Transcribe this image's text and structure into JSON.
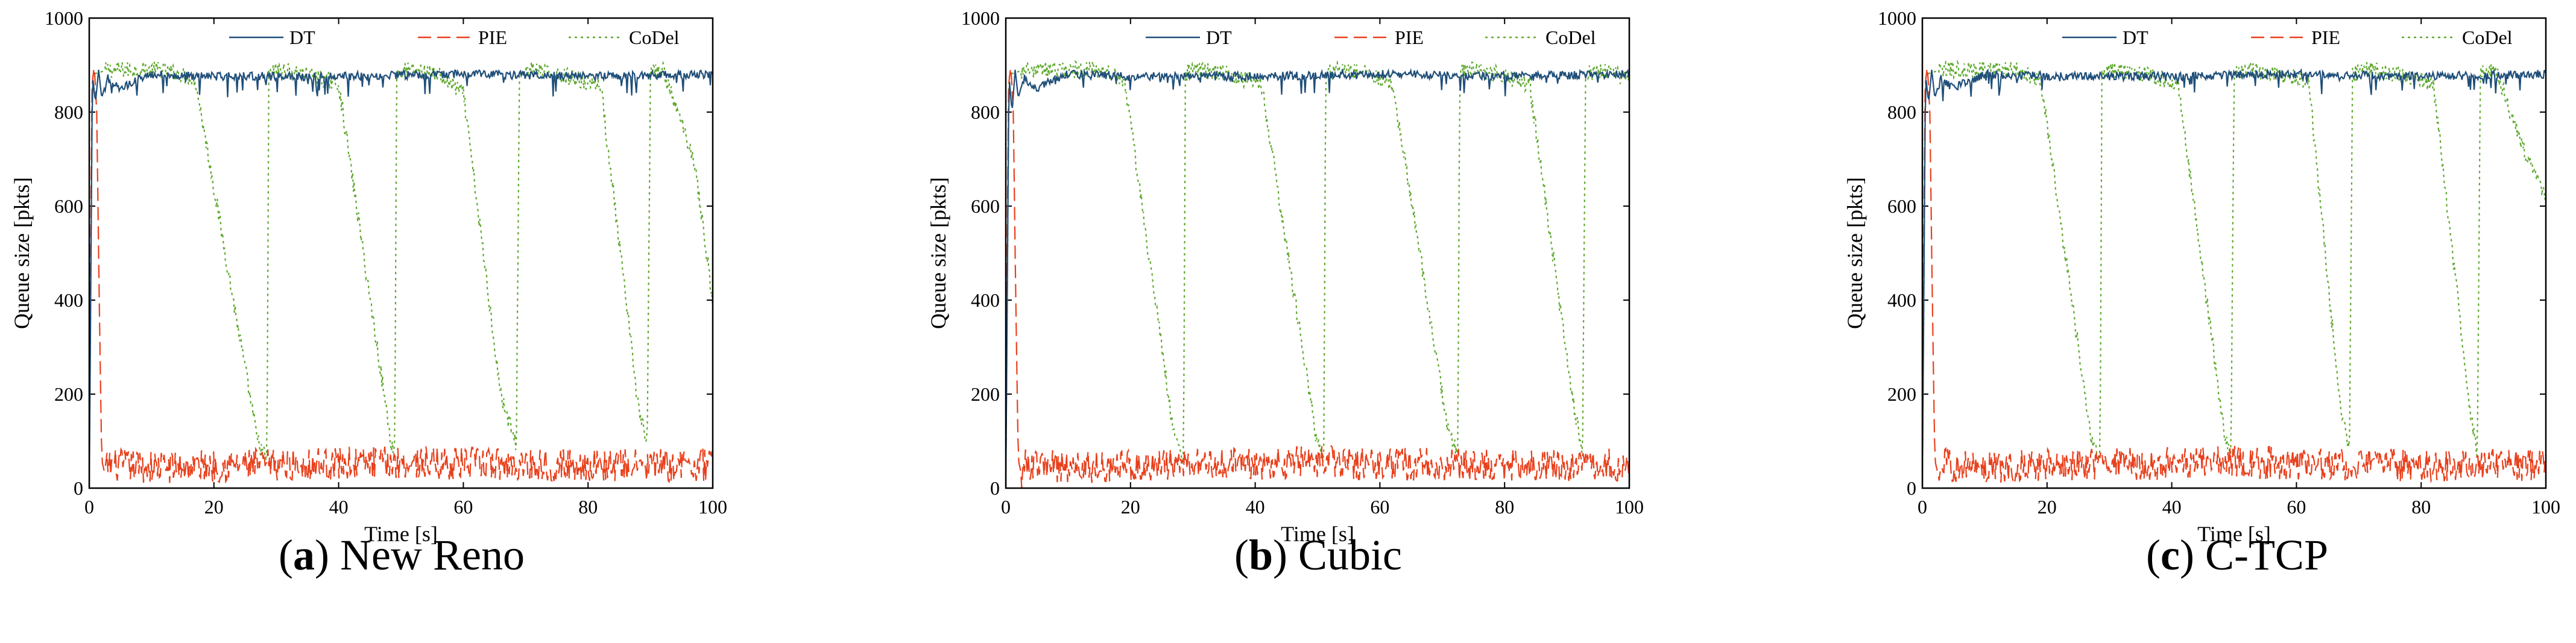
{
  "colors": {
    "DT": "#1f4e79",
    "PIE": "#e8401c",
    "CoDel": "#5fa82f"
  },
  "chart_data": [
    {
      "type": "line",
      "panel": "a",
      "caption_letter": "a",
      "caption_text": "New Reno",
      "xlabel": "Time [s]",
      "ylabel": "Queue size [pkts]",
      "xlim": [
        0,
        100
      ],
      "ylim": [
        0,
        1000
      ],
      "xticks": [
        0,
        20,
        40,
        60,
        80,
        100
      ],
      "yticks": [
        0,
        200,
        400,
        600,
        800,
        1000
      ],
      "legend": [
        "DT",
        "PIE",
        "CoDel"
      ],
      "series": [
        {
          "name": "DT",
          "style": "solid",
          "x": [
            0,
            0.5,
            1,
            1.5,
            2,
            3,
            5,
            10,
            20,
            40,
            60,
            80,
            100
          ],
          "y": [
            0,
            880,
            820,
            890,
            830,
            880,
            860,
            890,
            885,
            885,
            890,
            885,
            890
          ]
        },
        {
          "name": "PIE",
          "style": "dashed",
          "x": [
            0,
            0.4,
            0.8,
            1.2,
            1.6,
            2,
            2.5,
            3,
            10,
            30,
            50,
            70,
            90,
            100
          ],
          "y": [
            0,
            850,
            900,
            800,
            400,
            60,
            30,
            50,
            45,
            50,
            55,
            50,
            48,
            50
          ]
        },
        {
          "name": "CoDel",
          "style": "dotted",
          "x": [
            0,
            0.5,
            3,
            12,
            17,
            27,
            28.5,
            28.8,
            30,
            35,
            40,
            48.5,
            49,
            49.3,
            51,
            56,
            60,
            66,
            68.5,
            69,
            71,
            75,
            82,
            88,
            89.5,
            90,
            92,
            97,
            100
          ],
          "y": [
            0,
            880,
            890,
            890,
            870,
            100,
            60,
            880,
            890,
            880,
            860,
            90,
            80,
            880,
            890,
            880,
            840,
            200,
            90,
            880,
            890,
            880,
            860,
            180,
            90,
            880,
            890,
            700,
            400
          ]
        }
      ]
    },
    {
      "type": "line",
      "panel": "b",
      "caption_letter": "b",
      "caption_text": "Cubic",
      "xlabel": "Time [s]",
      "ylabel": "Queue size [pkts]",
      "xlim": [
        0,
        100
      ],
      "ylim": [
        0,
        1000
      ],
      "xticks": [
        0,
        20,
        40,
        60,
        80,
        100
      ],
      "yticks": [
        0,
        200,
        400,
        600,
        800,
        1000
      ],
      "legend": [
        "DT",
        "PIE",
        "CoDel"
      ],
      "series": [
        {
          "name": "DT",
          "style": "solid",
          "x": [
            0,
            0.5,
            1,
            1.5,
            2,
            3,
            5,
            10,
            20,
            40,
            60,
            80,
            100
          ],
          "y": [
            0,
            880,
            800,
            890,
            830,
            880,
            860,
            890,
            885,
            885,
            890,
            885,
            890
          ]
        },
        {
          "name": "PIE",
          "style": "dashed",
          "x": [
            0,
            0.4,
            0.8,
            1.2,
            1.6,
            2,
            2.5,
            3,
            10,
            30,
            50,
            70,
            90,
            100
          ],
          "y": [
            0,
            850,
            900,
            800,
            400,
            60,
            30,
            50,
            45,
            50,
            55,
            50,
            48,
            50
          ]
        },
        {
          "name": "CoDel",
          "style": "dotted",
          "x": [
            0,
            0.5,
            3,
            15,
            19,
            27,
            28.5,
            28.8,
            30,
            36,
            41,
            50,
            51,
            51.3,
            53,
            58,
            62,
            71,
            72.5,
            72.8,
            74,
            79,
            84,
            91,
            92.5,
            93,
            95,
            98,
            100
          ],
          "y": [
            0,
            880,
            890,
            890,
            870,
            110,
            60,
            880,
            890,
            880,
            860,
            90,
            70,
            880,
            890,
            880,
            860,
            120,
            70,
            880,
            890,
            880,
            860,
            180,
            80,
            880,
            890,
            880,
            870
          ]
        }
      ]
    },
    {
      "type": "line",
      "panel": "c",
      "caption_letter": "c",
      "caption_text": "C-TCP",
      "xlabel": "Time [s]",
      "ylabel": "Queue size [pkts]",
      "xlim": [
        0,
        100
      ],
      "ylim": [
        0,
        1000
      ],
      "xticks": [
        0,
        20,
        40,
        60,
        80,
        100
      ],
      "yticks": [
        0,
        200,
        400,
        600,
        800,
        1000
      ],
      "legend": [
        "DT",
        "PIE",
        "CoDel"
      ],
      "series": [
        {
          "name": "DT",
          "style": "solid",
          "x": [
            0,
            0.5,
            1,
            1.5,
            2,
            3,
            5,
            10,
            20,
            40,
            60,
            80,
            100
          ],
          "y": [
            0,
            880,
            820,
            890,
            830,
            880,
            860,
            890,
            885,
            885,
            890,
            885,
            890
          ]
        },
        {
          "name": "PIE",
          "style": "dashed",
          "x": [
            0,
            0.4,
            0.8,
            1.2,
            1.6,
            2,
            2.5,
            3,
            10,
            30,
            50,
            70,
            90,
            100
          ],
          "y": [
            0,
            850,
            900,
            800,
            400,
            60,
            30,
            50,
            45,
            50,
            55,
            50,
            48,
            50
          ]
        },
        {
          "name": "CoDel",
          "style": "dotted",
          "x": [
            0,
            0.5,
            3,
            15,
            19,
            27,
            28.5,
            28.8,
            30,
            36,
            41,
            48.5,
            49.5,
            50,
            52,
            58,
            62,
            67,
            68.5,
            69,
            71,
            77,
            82,
            88,
            89,
            89.5,
            92,
            97,
            100
          ],
          "y": [
            0,
            880,
            890,
            890,
            870,
            110,
            60,
            880,
            890,
            880,
            860,
            110,
            70,
            880,
            890,
            880,
            860,
            170,
            80,
            880,
            890,
            880,
            860,
            150,
            80,
            880,
            890,
            700,
            620
          ]
        }
      ]
    }
  ]
}
